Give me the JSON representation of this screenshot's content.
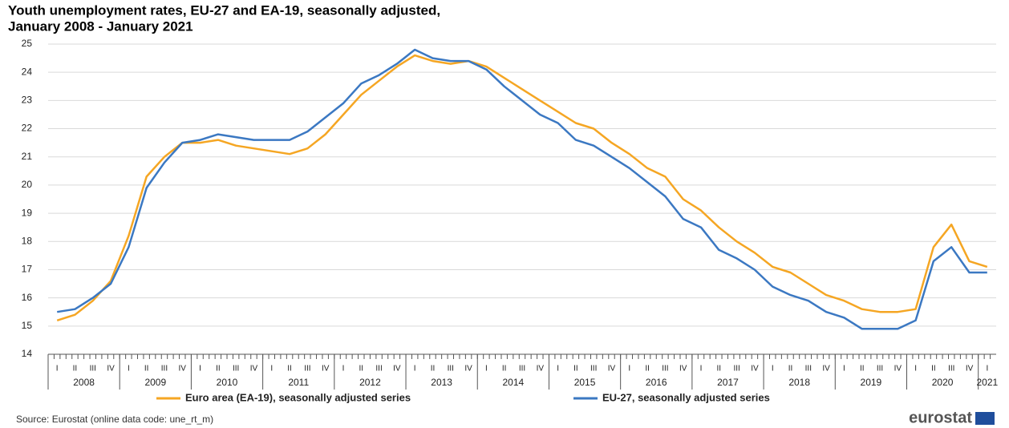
{
  "chart_data": {
    "type": "line",
    "title": "Youth unemployment rates, EU-27 and EA-19, seasonally adjusted,",
    "subtitle": "January 2008 - January 2021",
    "categories": [
      "I",
      "II",
      "III",
      "IV",
      "I",
      "II",
      "III",
      "IV",
      "I",
      "II",
      "III",
      "IV",
      "I",
      "II",
      "III",
      "IV",
      "I",
      "II",
      "III",
      "IV",
      "I",
      "II",
      "III",
      "IV",
      "I",
      "II",
      "III",
      "IV",
      "I",
      "II",
      "III",
      "IV",
      "I",
      "II",
      "III",
      "IV",
      "I",
      "II",
      "III",
      "IV",
      "I",
      "II",
      "III",
      "IV",
      "I",
      "II",
      "III",
      "IV",
      "I",
      "II",
      "III",
      "IV",
      "I"
    ],
    "year_labels": [
      "2008",
      "2009",
      "2010",
      "2011",
      "2012",
      "2013",
      "2014",
      "2015",
      "2016",
      "2017",
      "2018",
      "2019",
      "2020",
      "2021"
    ],
    "series": [
      {
        "name": "Euro area (EA-19), seasonally adjusted series",
        "color": "#f5a623",
        "values": [
          15.2,
          15.4,
          15.9,
          16.6,
          18.2,
          20.3,
          21.0,
          21.5,
          21.5,
          21.6,
          21.4,
          21.3,
          21.2,
          21.1,
          21.3,
          21.8,
          22.5,
          23.2,
          23.7,
          24.2,
          24.6,
          24.4,
          24.3,
          24.4,
          24.2,
          23.8,
          23.4,
          23.0,
          22.6,
          22.2,
          22.0,
          21.5,
          21.1,
          20.6,
          20.3,
          19.5,
          19.1,
          18.5,
          18.0,
          17.6,
          17.1,
          16.9,
          16.5,
          16.1,
          15.9,
          15.6,
          15.5,
          15.5,
          15.6,
          17.8,
          18.6,
          17.3,
          17.1
        ]
      },
      {
        "name": "EU-27, seasonally adjusted series",
        "color": "#3b78c2",
        "values": [
          15.5,
          15.6,
          16.0,
          16.5,
          17.8,
          19.9,
          20.8,
          21.5,
          21.6,
          21.8,
          21.7,
          21.6,
          21.6,
          21.6,
          21.9,
          22.4,
          22.9,
          23.6,
          23.9,
          24.3,
          24.8,
          24.5,
          24.4,
          24.4,
          24.1,
          23.5,
          23.0,
          22.5,
          22.2,
          21.6,
          21.4,
          21.0,
          20.6,
          20.1,
          19.6,
          18.8,
          18.5,
          17.7,
          17.4,
          17.0,
          16.4,
          16.1,
          15.9,
          15.5,
          15.3,
          14.9,
          14.9,
          14.9,
          15.2,
          17.3,
          17.8,
          16.9,
          16.9
        ]
      }
    ],
    "ylim": [
      14,
      25
    ],
    "yticks": [
      14,
      15,
      16,
      17,
      18,
      19,
      20,
      21,
      22,
      23,
      24,
      25
    ],
    "grid": true,
    "source": "Source: Eurostat (online data code: une_rt_m)",
    "logo": "eurostat"
  }
}
